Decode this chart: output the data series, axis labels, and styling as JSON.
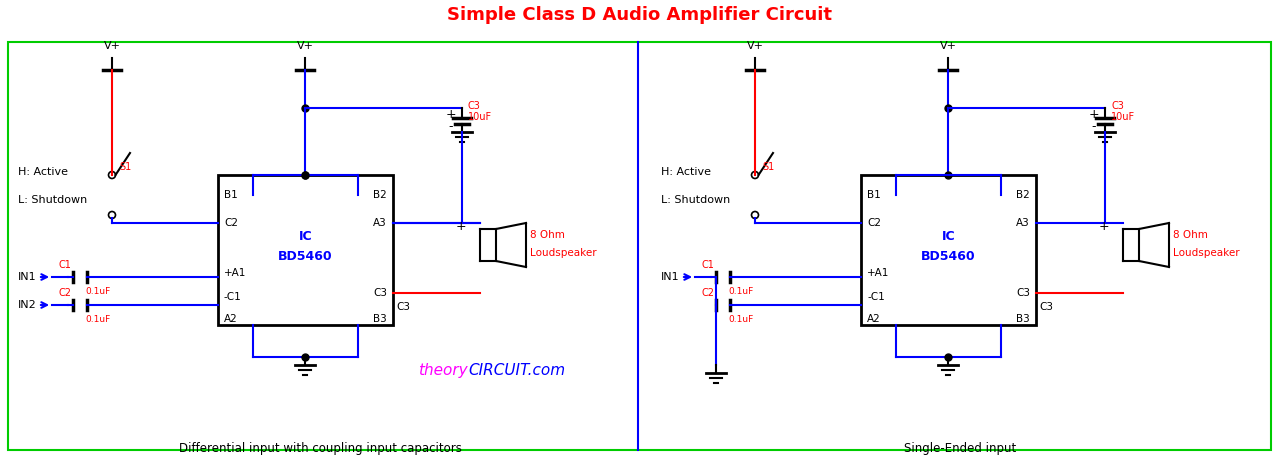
{
  "title": "Simple Class D Audio Amplifier Circuit",
  "title_color": "#FF0000",
  "title_fontsize": 13,
  "bg_color": "#FFFFFF",
  "border_color": "#00CC00",
  "divider_color": "#0000FF",
  "subtitle_left": "Differential input with coupling input capacitors",
  "subtitle_right": "Single-Ended input",
  "watermark_theory": "theory",
  "watermark_circuit": "CIRCUIT.com",
  "watermark_color_theory": "#FF00FF",
  "watermark_color_circuit": "#0000FF",
  "ic_label1": "IC",
  "ic_label2": "BD5460",
  "wire_color": "#0000FF",
  "red_wire": "#FF0000",
  "black_color": "#000000",
  "red_label_color": "#FF0000",
  "blue_label_color": "#0000FF",
  "fig_w": 12.79,
  "fig_h": 4.61,
  "dpi": 100
}
